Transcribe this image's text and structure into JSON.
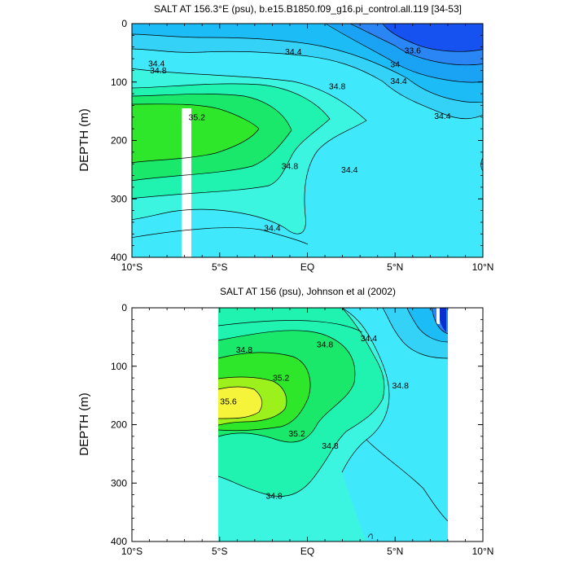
{
  "chart_data": [
    {
      "type": "contour",
      "title": "SALT AT 156.3°E (psu), b.e15.B1850.f09_g16.pi_control.all.119 [34-53]",
      "ylabel": "DEPTH (m)",
      "xlabel": "",
      "x_ticks": [
        "10°S",
        "5°S",
        "EQ",
        "5°N",
        "10°N"
      ],
      "y_ticks": [
        "0",
        "100",
        "200",
        "300",
        "400"
      ],
      "xlim": [
        -10,
        10
      ],
      "ylim": [
        400,
        0
      ],
      "y_inverted": true,
      "contour_interval": 0.2,
      "fill_scale": [
        {
          "max": 33.4,
          "color": "#0a2fd0"
        },
        {
          "max": 33.6,
          "color": "#1552f0"
        },
        {
          "max": 33.8,
          "color": "#2a85f5"
        },
        {
          "max": 34.0,
          "color": "#1aa3f5"
        },
        {
          "max": 34.2,
          "color": "#1cbcf7"
        },
        {
          "max": 34.4,
          "color": "#35d2f8"
        },
        {
          "max": 34.6,
          "color": "#40e8fb"
        },
        {
          "max": 34.8,
          "color": "#3cf5e0"
        },
        {
          "max": 35.0,
          "color": "#20f2b0"
        },
        {
          "max": 35.2,
          "color": "#1ae86a"
        },
        {
          "max": 35.4,
          "color": "#2ee62a"
        },
        {
          "max": 35.6,
          "color": "#9cf01c"
        },
        {
          "max": 99,
          "color": "#f6f43a"
        }
      ],
      "labeled_contours": [
        {
          "value": "34.4",
          "lat": -8.6,
          "depth": 68
        },
        {
          "value": "34.8",
          "lat": -8.5,
          "depth": 80
        },
        {
          "value": "35.2",
          "lat": -6.3,
          "depth": 160
        },
        {
          "value": "34.4",
          "lat": -0.8,
          "depth": 48
        },
        {
          "value": "34.8",
          "lat": 1.7,
          "depth": 107
        },
        {
          "value": "34.8",
          "lat": -1.0,
          "depth": 244
        },
        {
          "value": "34.4",
          "lat": 2.4,
          "depth": 250
        },
        {
          "value": "34.4",
          "lat": -2.0,
          "depth": 350
        },
        {
          "value": "34",
          "lat": 5.0,
          "depth": 70
        },
        {
          "value": "34.4",
          "lat": 5.2,
          "depth": 98
        },
        {
          "value": "33.6",
          "lat": 6.0,
          "depth": 46
        },
        {
          "value": "34.4",
          "lat": 7.7,
          "depth": 158
        }
      ],
      "missing_data_strip": {
        "lat": [
          -6.3,
          -5.85
        ],
        "depth": [
          145,
          400
        ]
      }
    },
    {
      "type": "contour",
      "title": "SALT AT 156 (psu), Johnson et al (2002)",
      "ylabel": "DEPTH (m)",
      "xlabel": "",
      "x_ticks": [
        "10°S",
        "5°S",
        "EQ",
        "5°N",
        "10°N"
      ],
      "y_ticks": [
        "0",
        "100",
        "200",
        "300",
        "400"
      ],
      "xlim": [
        -10,
        10
      ],
      "ylim": [
        400,
        0
      ],
      "y_inverted": true,
      "data_extent_lat": [
        -5,
        8
      ],
      "contour_interval": 0.2,
      "labeled_contours": [
        {
          "value": "34.8",
          "lat": -3.6,
          "depth": 72
        },
        {
          "value": "34.8",
          "lat": 1.0,
          "depth": 63
        },
        {
          "value": "34.4",
          "lat": 3.5,
          "depth": 52
        },
        {
          "value": "35.2",
          "lat": -1.5,
          "depth": 120
        },
        {
          "value": "35.6",
          "lat": -4.5,
          "depth": 160
        },
        {
          "value": "35.2",
          "lat": -0.6,
          "depth": 215
        },
        {
          "value": "34.8",
          "lat": 1.3,
          "depth": 236
        },
        {
          "value": "34.8",
          "lat": 5.3,
          "depth": 133
        },
        {
          "value": "34.8",
          "lat": -1.9,
          "depth": 322
        }
      ]
    }
  ]
}
